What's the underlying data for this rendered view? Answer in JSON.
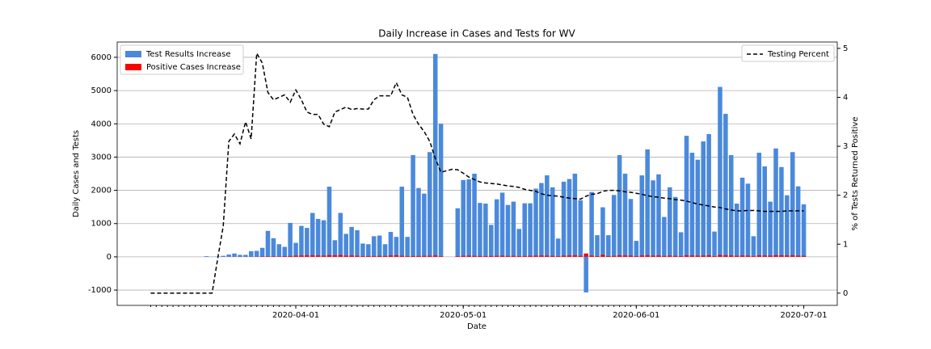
{
  "chart_data": {
    "type": "bar",
    "title": "Daily Increase in Cases and Tests for WV",
    "xlabel": "Date",
    "ylabel": "Daily Cases and Tests",
    "y2label": "% of Tests Returned Positive",
    "x": [
      "2020-03-06",
      "2020-03-07",
      "2020-03-08",
      "2020-03-09",
      "2020-03-10",
      "2020-03-11",
      "2020-03-12",
      "2020-03-13",
      "2020-03-14",
      "2020-03-15",
      "2020-03-16",
      "2020-03-17",
      "2020-03-18",
      "2020-03-19",
      "2020-03-20",
      "2020-03-21",
      "2020-03-22",
      "2020-03-23",
      "2020-03-24",
      "2020-03-25",
      "2020-03-26",
      "2020-03-27",
      "2020-03-28",
      "2020-03-29",
      "2020-03-30",
      "2020-03-31",
      "2020-04-01",
      "2020-04-02",
      "2020-04-03",
      "2020-04-04",
      "2020-04-05",
      "2020-04-06",
      "2020-04-07",
      "2020-04-08",
      "2020-04-09",
      "2020-04-10",
      "2020-04-11",
      "2020-04-12",
      "2020-04-13",
      "2020-04-14",
      "2020-04-15",
      "2020-04-16",
      "2020-04-17",
      "2020-04-18",
      "2020-04-19",
      "2020-04-20",
      "2020-04-21",
      "2020-04-22",
      "2020-04-23",
      "2020-04-24",
      "2020-04-25",
      "2020-04-26",
      "2020-04-27",
      "2020-04-28",
      "2020-04-29",
      "2020-04-30",
      "2020-05-01",
      "2020-05-02",
      "2020-05-03",
      "2020-05-04",
      "2020-05-05",
      "2020-05-06",
      "2020-05-07",
      "2020-05-08",
      "2020-05-09",
      "2020-05-10",
      "2020-05-11",
      "2020-05-12",
      "2020-05-13",
      "2020-05-14",
      "2020-05-15",
      "2020-05-16",
      "2020-05-17",
      "2020-05-18",
      "2020-05-19",
      "2020-05-20",
      "2020-05-21",
      "2020-05-22",
      "2020-05-23",
      "2020-05-24",
      "2020-05-25",
      "2020-05-26",
      "2020-05-27",
      "2020-05-28",
      "2020-05-29",
      "2020-05-30",
      "2020-05-31",
      "2020-06-01",
      "2020-06-02",
      "2020-06-03",
      "2020-06-04",
      "2020-06-05",
      "2020-06-06",
      "2020-06-07",
      "2020-06-08",
      "2020-06-09",
      "2020-06-10",
      "2020-06-11",
      "2020-06-12",
      "2020-06-13",
      "2020-06-14",
      "2020-06-15",
      "2020-06-16",
      "2020-06-17",
      "2020-06-18",
      "2020-06-19",
      "2020-06-20",
      "2020-06-21",
      "2020-06-22",
      "2020-06-23",
      "2020-06-24",
      "2020-06-25",
      "2020-06-26",
      "2020-06-27",
      "2020-06-28",
      "2020-06-29",
      "2020-06-30",
      "2020-07-01"
    ],
    "series": [
      {
        "name": "Test Results Increase",
        "type": "bar",
        "color": "#4a89dc",
        "values": [
          0,
          0,
          0,
          0,
          0,
          0,
          0,
          0,
          0,
          0,
          20,
          5,
          10,
          30,
          70,
          100,
          60,
          60,
          170,
          180,
          270,
          780,
          560,
          380,
          300,
          1020,
          420,
          930,
          870,
          1320,
          1140,
          1100,
          2110,
          500,
          1320,
          690,
          900,
          800,
          400,
          380,
          620,
          640,
          380,
          750,
          600,
          2110,
          600,
          3060,
          2070,
          1900,
          3150,
          6100,
          4000,
          0,
          0,
          1460,
          2310,
          2330,
          2500,
          1620,
          1600,
          960,
          1730,
          1930,
          1560,
          1660,
          840,
          1610,
          1610,
          2050,
          2220,
          2450,
          2090,
          550,
          2260,
          2340,
          2500,
          1700,
          -1070,
          1950,
          650,
          1490,
          650,
          1860,
          3060,
          2500,
          1740,
          480,
          2450,
          3230,
          2300,
          2480,
          1200,
          2090,
          1800,
          740,
          3640,
          3130,
          2920,
          3470,
          3690,
          760,
          5110,
          4300,
          3060,
          1600,
          2380,
          2200,
          620,
          3130,
          2720,
          1660,
          3260,
          2700,
          1850,
          3150,
          2120,
          1580
        ]
      },
      {
        "name": "Positive Cases Increase",
        "type": "bar",
        "color": "#ff0000",
        "values": [
          0,
          0,
          0,
          0,
          0,
          0,
          0,
          0,
          0,
          0,
          1,
          0,
          1,
          2,
          3,
          4,
          4,
          2,
          5,
          6,
          13,
          14,
          17,
          11,
          21,
          23,
          35,
          40,
          45,
          45,
          40,
          35,
          50,
          45,
          55,
          35,
          40,
          30,
          20,
          25,
          25,
          30,
          25,
          40,
          45,
          30,
          20,
          25,
          25,
          30,
          30,
          40,
          20,
          0,
          0,
          20,
          30,
          35,
          30,
          25,
          20,
          25,
          30,
          35,
          25,
          30,
          20,
          25,
          30,
          35,
          40,
          35,
          30,
          20,
          35,
          40,
          45,
          30,
          100,
          35,
          20,
          60,
          25,
          30,
          45,
          40,
          35,
          20,
          40,
          45,
          35,
          40,
          25,
          35,
          30,
          20,
          45,
          40,
          35,
          40,
          45,
          20,
          55,
          45,
          40,
          30,
          40,
          35,
          20,
          45,
          40,
          35,
          50,
          45,
          40,
          45,
          35,
          30
        ]
      },
      {
        "name": "Testing Percent",
        "type": "line",
        "axis": "y2",
        "color": "#000000",
        "dashed": true,
        "values": [
          0,
          0,
          0,
          0,
          0,
          0,
          0,
          0,
          0,
          0,
          0,
          0,
          0.7,
          1.37,
          3.1,
          3.25,
          3.05,
          3.5,
          3.15,
          4.9,
          4.7,
          4.1,
          3.95,
          4.0,
          4.05,
          3.9,
          4.15,
          3.95,
          3.7,
          3.65,
          3.65,
          3.45,
          3.4,
          3.7,
          3.75,
          3.8,
          3.75,
          3.77,
          3.76,
          3.76,
          3.95,
          4.03,
          4.03,
          4.03,
          4.3,
          4.05,
          4.0,
          3.65,
          3.45,
          3.3,
          3.1,
          2.75,
          2.47,
          2.5,
          2.53,
          2.52,
          2.45,
          2.37,
          2.32,
          2.27,
          2.25,
          2.24,
          2.23,
          2.21,
          2.19,
          2.18,
          2.16,
          2.12,
          2.1,
          2.08,
          2.03,
          2.0,
          1.99,
          1.98,
          1.96,
          1.94,
          1.93,
          1.92,
          1.98,
          2.02,
          2.03,
          2.08,
          2.1,
          2.1,
          2.09,
          2.07,
          2.06,
          2.04,
          2.02,
          1.99,
          1.97,
          1.96,
          1.94,
          1.93,
          1.91,
          1.9,
          1.88,
          1.85,
          1.82,
          1.8,
          1.78,
          1.76,
          1.75,
          1.72,
          1.7,
          1.68,
          1.68,
          1.69,
          1.69,
          1.68,
          1.67,
          1.67,
          1.67,
          1.67,
          1.68,
          1.68,
          1.68,
          1.68
        ]
      }
    ],
    "xlim": [
      "2020-02-29",
      "2020-07-07"
    ],
    "xticks": [
      "2020-04-01",
      "2020-05-01",
      "2020-06-01",
      "2020-07-01"
    ],
    "ylim": [
      -1460,
      6460
    ],
    "yticks": [
      -1000,
      0,
      1000,
      2000,
      3000,
      4000,
      5000,
      6000
    ],
    "y2lim": [
      -0.25,
      5.13
    ],
    "y2ticks": [
      0,
      1,
      2,
      3,
      4,
      5
    ],
    "grid": true,
    "legend": "upper left",
    "legend2": "upper right"
  }
}
